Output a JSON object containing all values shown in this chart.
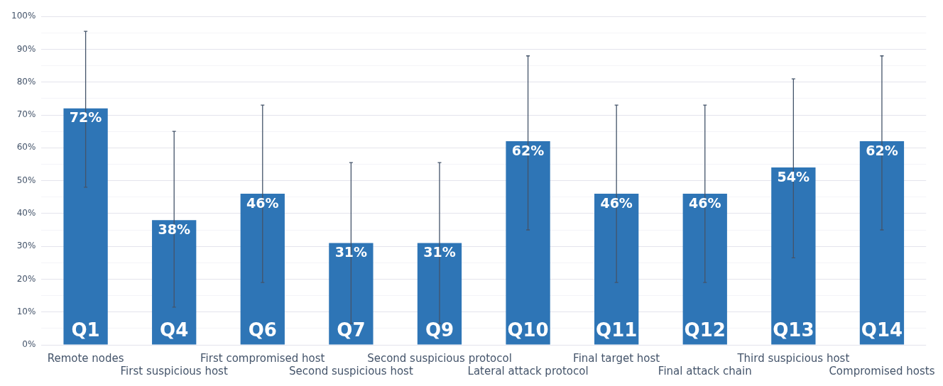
{
  "chart_data": {
    "type": "bar",
    "categories": [
      "Remote nodes",
      "First suspicious host",
      "First compromised host",
      "Second suspicious host",
      "Second suspicious protocol",
      "Lateral attack protocol",
      "Final target host",
      "Final attack chain",
      "Third suspicious host",
      "Compromised hosts"
    ],
    "values": [
      72,
      38,
      46,
      31,
      31,
      62,
      46,
      46,
      54,
      62
    ],
    "value_labels": [
      "72%",
      "38%",
      "46%",
      "31%",
      "31%",
      "62%",
      "46%",
      "46%",
      "54%",
      "62%"
    ],
    "errors": [
      [
        48,
        95.5
      ],
      [
        11.5,
        65
      ],
      [
        19,
        73
      ],
      [
        6.5,
        55.5
      ],
      [
        6.5,
        55.5
      ],
      [
        35,
        88
      ],
      [
        19,
        73
      ],
      [
        19,
        73
      ],
      [
        26.5,
        81
      ],
      [
        35,
        88
      ]
    ],
    "color": "#2e75b6",
    "annotations": [
      "Q1",
      "Q4",
      "Q6",
      "Q7",
      "Q9",
      "Q10",
      "Q11",
      "Q12",
      "Q13",
      "Q14"
    ],
    "ylim": [
      0,
      100
    ],
    "yticks": [
      {
        "value": 0,
        "label": "0%"
      },
      {
        "value": 5,
        "label": null
      },
      {
        "value": 10,
        "label": "10%"
      },
      {
        "value": 15,
        "label": null
      },
      {
        "value": 20,
        "label": "20%"
      },
      {
        "value": 25,
        "label": null
      },
      {
        "value": 30,
        "label": "30%"
      },
      {
        "value": 35,
        "label": null
      },
      {
        "value": 40,
        "label": "40%"
      },
      {
        "value": 45,
        "label": null
      },
      {
        "value": 50,
        "label": "50%"
      },
      {
        "value": 55,
        "label": null
      },
      {
        "value": 60,
        "label": "60%"
      },
      {
        "value": 65,
        "label": null
      },
      {
        "value": 70,
        "label": "70%"
      },
      {
        "value": 75,
        "label": null
      },
      {
        "value": 80,
        "label": "80%"
      },
      {
        "value": 85,
        "label": null
      },
      {
        "value": 90,
        "label": "90%"
      },
      {
        "value": 95,
        "label": null
      },
      {
        "value": 100,
        "label": "100%"
      }
    ],
    "grid": "y",
    "legend": false
  }
}
